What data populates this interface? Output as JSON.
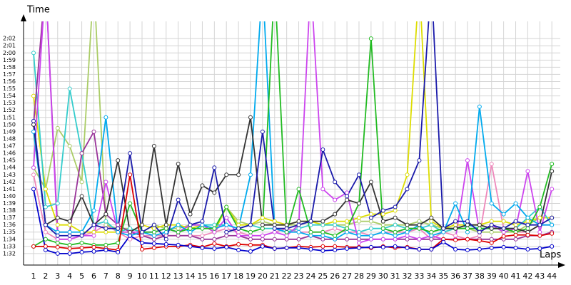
{
  "chart_data": {
    "type": "line",
    "y_label": "Time",
    "x_label": "Laps",
    "xlim": [
      0.17,
      44.7
    ],
    "ylim": [
      90.4,
      124.4
    ],
    "grid": true,
    "x": [
      1,
      2,
      3,
      4,
      5,
      6,
      7,
      8,
      9,
      10,
      11,
      12,
      13,
      14,
      15,
      16,
      17,
      18,
      19,
      20,
      21,
      22,
      23,
      24,
      25,
      26,
      27,
      28,
      29,
      30,
      31,
      32,
      33,
      34,
      35,
      36,
      37,
      38,
      39,
      40,
      41,
      42,
      43,
      44
    ],
    "xticks": [
      1,
      2,
      3,
      4,
      5,
      6,
      7,
      8,
      9,
      10,
      11,
      12,
      13,
      14,
      15,
      16,
      17,
      18,
      19,
      20,
      21,
      22,
      23,
      24,
      25,
      26,
      27,
      28,
      29,
      30,
      31,
      32,
      33,
      34,
      35,
      36,
      37,
      38,
      39,
      40,
      41,
      42,
      43,
      44
    ],
    "yticks": [
      {
        "value": 92,
        "label": "1:32"
      },
      {
        "value": 93,
        "label": "1:33"
      },
      {
        "value": 94,
        "label": "1:34"
      },
      {
        "value": 95,
        "label": "1:35"
      },
      {
        "value": 96,
        "label": "1:36"
      },
      {
        "value": 97,
        "label": "1:37"
      },
      {
        "value": 98,
        "label": "1:38"
      },
      {
        "value": 99,
        "label": "1:39"
      },
      {
        "value": 100,
        "label": "1:40"
      },
      {
        "value": 101,
        "label": "1:41"
      },
      {
        "value": 102,
        "label": "1:42"
      },
      {
        "value": 103,
        "label": "1:43"
      },
      {
        "value": 104,
        "label": "1:44"
      },
      {
        "value": 105,
        "label": "1:45"
      },
      {
        "value": 106,
        "label": "1:46"
      },
      {
        "value": 107,
        "label": "1:47"
      },
      {
        "value": 108,
        "label": "1:48"
      },
      {
        "value": 109,
        "label": "1:49"
      },
      {
        "value": 110,
        "label": "1:50"
      },
      {
        "value": 111,
        "label": "1:51"
      },
      {
        "value": 112,
        "label": "1:52"
      },
      {
        "value": 113,
        "label": "1:53"
      },
      {
        "value": 114,
        "label": "1:54"
      },
      {
        "value": 115,
        "label": "1:55"
      },
      {
        "value": 116,
        "label": "1:56"
      },
      {
        "value": 117,
        "label": "1:57"
      },
      {
        "value": 118,
        "label": "1:58"
      },
      {
        "value": 119,
        "label": "1:59"
      },
      {
        "value": 120,
        "label": "2:00"
      },
      {
        "value": 121,
        "label": "2:01"
      },
      {
        "value": 122,
        "label": "2:02"
      }
    ],
    "series": [
      {
        "color": "#ee88bb",
        "values": [
          103,
          95,
          94,
          94,
          94.5,
          95,
          96,
          95,
          94,
          94.5,
          94.5,
          94.5,
          94.5,
          94.5,
          94.5,
          95,
          95.5,
          95,
          94.5,
          94.5,
          95,
          95.5,
          95,
          95,
          95,
          95.5,
          95,
          95,
          94.5,
          95,
          95,
          95,
          95.5,
          94,
          95,
          94.5,
          94,
          94.5,
          104.5,
          95.5,
          95,
          95,
          96,
          96
        ]
      },
      {
        "color": "#aacc66",
        "values": [
          104,
          101,
          109.5,
          107,
          102,
          130,
          96,
          95.5,
          95.5,
          95,
          96,
          95.5,
          95.5,
          96,
          96,
          95.5,
          98.5,
          96.5,
          96,
          96.5,
          96,
          96,
          96,
          96.5,
          96,
          96,
          96,
          96.5,
          96.5,
          96,
          96,
          96,
          96.5,
          96,
          95.5,
          95.5,
          95.5,
          95,
          95,
          95,
          95,
          96,
          97,
          97
        ]
      },
      {
        "color": "#dddd00",
        "values": [
          114,
          101,
          96,
          96,
          95,
          95,
          95,
          95,
          95,
          96,
          95.5,
          96,
          96,
          95.5,
          96,
          95,
          98.5,
          96,
          96,
          97,
          96.5,
          96,
          96.5,
          96.5,
          96,
          96.5,
          96.5,
          97,
          97.5,
          97.5,
          98,
          103,
          130,
          96.5,
          95.5,
          96,
          96,
          96,
          96.5,
          96.5,
          96,
          96.5,
          97,
          97
        ]
      },
      {
        "color": "#33cccc",
        "values": [
          120,
          98.5,
          99,
          115,
          106,
          96,
          96.5,
          95,
          95.5,
          95,
          95,
          95.5,
          95,
          96,
          96,
          96,
          96,
          95.5,
          96,
          95.5,
          95.5,
          95,
          95.5,
          96,
          96,
          96,
          95.5,
          95,
          95.5,
          95.5,
          96,
          95.5,
          95.5,
          96,
          95,
          95.5,
          96,
          95.5,
          95.5,
          95.5,
          95.5,
          97,
          98.5,
          96
        ]
      },
      {
        "color": "#993399",
        "values": [
          110,
          130,
          95,
          95,
          106,
          109,
          97.5,
          96,
          95,
          94.5,
          94,
          94.5,
          94.5,
          94.5,
          94,
          94,
          94.5,
          94.5,
          94,
          94,
          94,
          94,
          94,
          94.5,
          94,
          94,
          94,
          94,
          94,
          94,
          94,
          94,
          94,
          94,
          94,
          94,
          94,
          94,
          94,
          94,
          94,
          94.5,
          94.5,
          95
        ]
      },
      {
        "color": "#cc44ee",
        "values": [
          104,
          130,
          94,
          94,
          94.5,
          94.5,
          102,
          95,
          95,
          95,
          95,
          95.5,
          95,
          96,
          96,
          95,
          97,
          94.5,
          94.5,
          94.5,
          95,
          94.5,
          96,
          130,
          101,
          99.5,
          100.5,
          93.5,
          94,
          94,
          94,
          94.5,
          94,
          94.5,
          94,
          94,
          105,
          95,
          96,
          95,
          95.5,
          103.5,
          95,
          101
        ]
      },
      {
        "color": "#00aaee",
        "values": [
          109,
          96,
          95,
          95,
          95,
          98,
          111,
          95,
          94.5,
          95,
          94.5,
          95,
          96,
          95,
          96,
          95.5,
          96,
          95.5,
          103,
          130,
          95.5,
          95,
          95,
          94.5,
          94.5,
          94,
          95,
          94.5,
          94.5,
          95,
          94.5,
          95,
          96,
          94.5,
          95,
          99,
          95,
          112.5,
          99,
          97.5,
          99,
          97,
          96,
          96
        ]
      },
      {
        "color": "#22bb22",
        "values": [
          93,
          94,
          93.5,
          93.2,
          93.5,
          93.2,
          93.2,
          93.5,
          99,
          95,
          95,
          95.5,
          95,
          95.5,
          95.5,
          95.5,
          98.5,
          95.5,
          95,
          95.5,
          130,
          95,
          101,
          95,
          95,
          94.5,
          95.5,
          99,
          122,
          95.5,
          95,
          95.5,
          95.5,
          95,
          95.5,
          95.5,
          95.5,
          95.5,
          95.5,
          95.5,
          95,
          95.5,
          98.5,
          104.5
        ]
      },
      {
        "color": "#333333",
        "values": [
          110,
          96,
          97,
          96.5,
          100,
          96,
          97.5,
          105,
          95,
          96,
          107,
          96,
          104.5,
          97.5,
          101.5,
          100.5,
          103,
          103,
          111,
          96,
          96,
          96,
          96.5,
          96.5,
          96.5,
          97.5,
          99.5,
          99,
          102,
          96.5,
          97,
          96,
          96,
          97,
          95.5,
          95.5,
          96,
          96,
          95.5,
          95.5,
          95.5,
          95,
          96,
          103.5
        ]
      },
      {
        "color": "#1a1aaa",
        "values": [
          110.5,
          96,
          94.5,
          94.5,
          94.5,
          96,
          95.5,
          95.5,
          106,
          95,
          96,
          94,
          99.5,
          96,
          96.5,
          104,
          95,
          95.5,
          96,
          109,
          95.5,
          95.5,
          96,
          96.5,
          106.5,
          102,
          100,
          103,
          97,
          98,
          98.5,
          101,
          105,
          130,
          95.5,
          96.5,
          96.5,
          95,
          96,
          95.5,
          96.5,
          96,
          96,
          97
        ]
      },
      {
        "color": "#dd0000",
        "values": [
          93,
          93,
          92.9,
          92.7,
          92.8,
          92.9,
          92.7,
          92.5,
          103,
          92.6,
          92.8,
          93,
          93,
          93.2,
          92.9,
          93.4,
          93,
          93.3,
          93.2,
          93.2,
          92.7,
          92.8,
          93,
          92.9,
          93,
          93,
          92.9,
          92.9,
          92.8,
          93,
          92.8,
          92.9,
          92.6,
          92.6,
          94,
          93.9,
          94,
          93.8,
          93.5,
          94.4,
          94.6,
          94.6,
          94.5,
          94.8
        ]
      },
      {
        "color": "#0000cc",
        "values": [
          101,
          92.5,
          92,
          92,
          92.2,
          92.3,
          92.5,
          92.2,
          94.5,
          93.5,
          93.4,
          93.3,
          93.2,
          93,
          92.8,
          92.7,
          92.9,
          92.5,
          92.3,
          93,
          92.7,
          92.8,
          92.8,
          92.6,
          92.4,
          92.5,
          92.7,
          92.8,
          92.9,
          92.9,
          93,
          92.8,
          92.6,
          92.6,
          93.6,
          92.6,
          92.5,
          92.6,
          92.8,
          92.9,
          92.8,
          92.6,
          92.7,
          93
        ]
      }
    ]
  }
}
